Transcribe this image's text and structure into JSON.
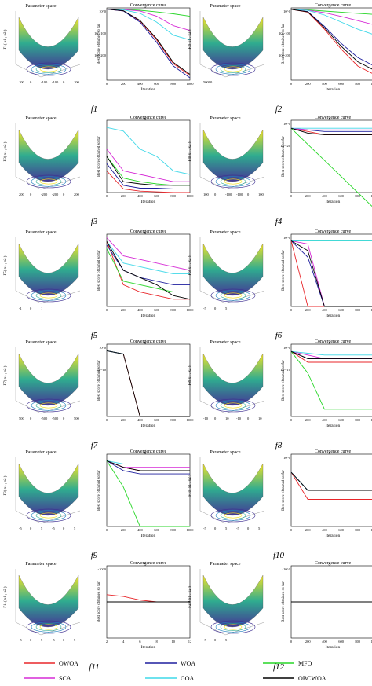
{
  "figure": {
    "functions": [
      "f1",
      "f2",
      "f3",
      "f4",
      "f5",
      "f6",
      "f7",
      "f8",
      "f9",
      "f10",
      "f11",
      "f12"
    ],
    "parameter_space_title": "Parameter space",
    "convergence_title": "Convergence curve",
    "xlabel": "Iteration",
    "ylabel": "Best score obtained so far"
  },
  "legend": [
    {
      "name": "OWOA",
      "color": "#e8262a"
    },
    {
      "name": "WOA",
      "color": "#1f1f9e"
    },
    {
      "name": "MFO",
      "color": "#27d627"
    },
    {
      "name": "SCA",
      "color": "#d62bd6"
    },
    {
      "name": "GOA",
      "color": "#3fd8e8"
    },
    {
      "name": "OBCWOA",
      "color": "#000000"
    }
  ],
  "chart_data": [
    {
      "function": "f1",
      "type": "line",
      "surface_zlabel": "F1( x1 , x2 )",
      "surface_ticks": [
        "100",
        "0",
        "-100",
        "-100",
        "0",
        "100"
      ],
      "x": [
        0,
        200,
        400,
        600,
        800,
        1000
      ],
      "yticks": [
        "10^0",
        "10^-100",
        "10^-200"
      ],
      "ylim": [
        -300,
        5
      ],
      "log_scale": true,
      "series": [
        {
          "name": "OWOA",
          "values": [
            0,
            -8,
            -50,
            -130,
            -230,
            -280
          ]
        },
        {
          "name": "WOA",
          "values": [
            0,
            -8,
            -55,
            -140,
            -240,
            -290
          ]
        },
        {
          "name": "MFO",
          "values": [
            0,
            -1,
            -5,
            -12,
            -20,
            -30
          ]
        },
        {
          "name": "SCA",
          "values": [
            0,
            -2,
            -8,
            -30,
            -70,
            -90
          ]
        },
        {
          "name": "GOA",
          "values": [
            0,
            -3,
            -18,
            -55,
            -110,
            -130
          ]
        },
        {
          "name": "OBCWOA",
          "values": [
            0,
            -7,
            -48,
            -125,
            -225,
            -275
          ]
        }
      ]
    },
    {
      "function": "f2",
      "type": "line",
      "surface_zlabel": "F2( x1 , x2 )",
      "surface_ticks": [
        "50000"
      ],
      "x": [
        0,
        200,
        400,
        600,
        800,
        1000
      ],
      "yticks": [
        "10^0",
        "10^-100",
        "10^-200"
      ],
      "ylim": [
        -250,
        5
      ],
      "log_scale": true,
      "series": [
        {
          "name": "OWOA",
          "values": [
            0,
            -10,
            -70,
            -140,
            -200,
            -230
          ]
        },
        {
          "name": "WOA",
          "values": [
            0,
            -8,
            -60,
            -120,
            -170,
            -200
          ]
        },
        {
          "name": "MFO",
          "values": [
            0,
            -2,
            -6,
            -10,
            -14,
            -18
          ]
        },
        {
          "name": "SCA",
          "values": [
            0,
            -3,
            -12,
            -25,
            -40,
            -55
          ]
        },
        {
          "name": "GOA",
          "values": [
            0,
            -4,
            -20,
            -45,
            -70,
            -90
          ]
        },
        {
          "name": "OBCWOA",
          "values": [
            0,
            -9,
            -65,
            -130,
            -185,
            -215
          ]
        }
      ]
    },
    {
      "function": "f3",
      "type": "line",
      "surface_zlabel": "F3( x1 , x2 )",
      "surface_ticks": [
        "200",
        "0",
        "-200",
        "-200",
        "0",
        "200"
      ],
      "x": [
        0,
        200,
        400,
        600,
        800,
        1000
      ],
      "yticks": [],
      "ylim": [
        0,
        1
      ],
      "log_scale": false,
      "series": [
        {
          "name": "OWOA",
          "values": [
            0.3,
            0.05,
            0.02,
            0.01,
            0.0,
            0.0
          ]
        },
        {
          "name": "WOA",
          "values": [
            0.4,
            0.1,
            0.06,
            0.06,
            0.05,
            0.05
          ]
        },
        {
          "name": "MFO",
          "values": [
            0.5,
            0.2,
            0.15,
            0.12,
            0.1,
            0.1
          ]
        },
        {
          "name": "SCA",
          "values": [
            0.6,
            0.3,
            0.25,
            0.2,
            0.15,
            0.15
          ]
        },
        {
          "name": "GOA",
          "values": [
            0.9,
            0.85,
            0.6,
            0.5,
            0.3,
            0.25
          ]
        },
        {
          "name": "OBCWOA",
          "values": [
            0.5,
            0.15,
            0.12,
            0.1,
            0.1,
            0.1
          ]
        }
      ]
    },
    {
      "function": "f4",
      "type": "line",
      "surface_zlabel": "F4( x1 , x2 )",
      "surface_ticks": [
        "100",
        "0",
        "-100",
        "-100",
        "0",
        "100"
      ],
      "x": [
        0,
        200,
        400,
        600,
        800,
        1000
      ],
      "yticks": [
        "10^0",
        "10^-20"
      ],
      "ylim": [
        -40,
        5
      ],
      "log_scale": true,
      "series": [
        {
          "name": "OWOA",
          "values": [
            0,
            -2,
            -4,
            -4,
            -4,
            -4
          ]
        },
        {
          "name": "WOA",
          "values": [
            0,
            -1,
            -2,
            -2,
            -2,
            -2
          ]
        },
        {
          "name": "MFO",
          "values": [
            0,
            -10,
            -20,
            -30,
            -40,
            -50
          ]
        },
        {
          "name": "SCA",
          "values": [
            0,
            -1,
            -1,
            -1,
            -1,
            -1
          ]
        },
        {
          "name": "GOA",
          "values": [
            0,
            0,
            0,
            0,
            0,
            0
          ]
        },
        {
          "name": "OBCWOA",
          "values": [
            0,
            -3,
            -4,
            -4,
            -4,
            -4
          ]
        }
      ]
    },
    {
      "function": "f5",
      "type": "line",
      "surface_zlabel": "F5( x1 , x2 )",
      "surface_ticks": [
        "-1",
        "0",
        "1"
      ],
      "x": [
        0,
        200,
        400,
        600,
        800,
        1000
      ],
      "yticks": [],
      "ylim": [
        0,
        1
      ],
      "log_scale": false,
      "series": [
        {
          "name": "OWOA",
          "values": [
            0.9,
            0.3,
            0.2,
            0.15,
            0.1,
            0.1
          ]
        },
        {
          "name": "WOA",
          "values": [
            0.85,
            0.5,
            0.4,
            0.35,
            0.3,
            0.3
          ]
        },
        {
          "name": "MFO",
          "values": [
            0.8,
            0.35,
            0.3,
            0.25,
            0.2,
            0.2
          ]
        },
        {
          "name": "SCA",
          "values": [
            0.95,
            0.7,
            0.65,
            0.6,
            0.55,
            0.5
          ]
        },
        {
          "name": "GOA",
          "values": [
            0.9,
            0.6,
            0.55,
            0.5,
            0.45,
            0.45
          ]
        },
        {
          "name": "OBCWOA",
          "values": [
            0.9,
            0.5,
            0.4,
            0.3,
            0.15,
            0.1
          ]
        }
      ]
    },
    {
      "function": "f6",
      "type": "line",
      "surface_zlabel": "F6( x1 , x2 )",
      "surface_ticks": [
        "-5",
        "0",
        "5"
      ],
      "x": [
        0,
        200,
        400,
        600,
        800,
        1000
      ],
      "yticks": [
        "10^0"
      ],
      "ylim": [
        -20,
        2
      ],
      "log_scale": true,
      "series": [
        {
          "name": "OWOA",
          "values": [
            0,
            -20,
            -20,
            -20,
            -20,
            -20
          ]
        },
        {
          "name": "WOA",
          "values": [
            0,
            -5,
            -20,
            -20,
            -20,
            -20
          ]
        },
        {
          "name": "MFO",
          "values": [
            0,
            0,
            0,
            0,
            0,
            0
          ]
        },
        {
          "name": "SCA",
          "values": [
            0,
            -1,
            -20,
            -20,
            -20,
            -20
          ]
        },
        {
          "name": "GOA",
          "values": [
            0,
            0,
            0,
            0,
            0,
            0
          ]
        },
        {
          "name": "OBCWOA",
          "values": [
            0,
            -3,
            -20,
            -20,
            -20,
            -20
          ]
        }
      ]
    },
    {
      "function": "f7",
      "type": "line",
      "surface_zlabel": "F7( x1 , x2 )",
      "surface_ticks": [
        "500",
        "0",
        "-500",
        "-500",
        "0",
        "500"
      ],
      "x": [
        0,
        200,
        400,
        600,
        800,
        1000
      ],
      "yticks": [
        "10^0",
        "10^-10"
      ],
      "ylim": [
        -20,
        2
      ],
      "log_scale": true,
      "series": [
        {
          "name": "OWOA",
          "values": [
            0,
            -1,
            -20,
            -20,
            -20,
            -20
          ]
        },
        {
          "name": "WOA",
          "values": [
            0,
            -1,
            -1,
            -1,
            -1,
            -1
          ]
        },
        {
          "name": "MFO",
          "values": [
            0,
            -1,
            -1,
            -1,
            -1,
            -1
          ]
        },
        {
          "name": "SCA",
          "values": [
            0,
            -1,
            -1,
            -1,
            -1,
            -1
          ]
        },
        {
          "name": "GOA",
          "values": [
            0,
            -1,
            -1,
            -1,
            -1,
            -1
          ]
        },
        {
          "name": "OBCWOA",
          "values": [
            0,
            -1,
            -20,
            -20,
            -20,
            -20
          ]
        }
      ]
    },
    {
      "function": "f8",
      "type": "line",
      "surface_zlabel": "F8( x1 , x2 )",
      "surface_ticks": [
        "-10",
        "0",
        "10",
        "-10",
        "0",
        "10"
      ],
      "x": [
        0,
        200,
        400,
        600,
        800,
        1000
      ],
      "yticks": [
        "10^0",
        "10^-10"
      ],
      "ylim": [
        -18,
        2
      ],
      "log_scale": true,
      "series": [
        {
          "name": "OWOA",
          "values": [
            0,
            -3,
            -3,
            -3,
            -3,
            -3
          ]
        },
        {
          "name": "WOA",
          "values": [
            0,
            -2,
            -2,
            -2,
            -2,
            -2
          ]
        },
        {
          "name": "MFO",
          "values": [
            0,
            -6,
            -16,
            -16,
            -16,
            -16
          ]
        },
        {
          "name": "SCA",
          "values": [
            0,
            -1,
            -2,
            -2,
            -2,
            -2
          ]
        },
        {
          "name": "GOA",
          "values": [
            0,
            -0.5,
            -1,
            -1,
            -1,
            -1
          ]
        },
        {
          "name": "OBCWOA",
          "values": [
            0,
            -2,
            -2,
            -2,
            -2,
            -2
          ]
        }
      ]
    },
    {
      "function": "f9",
      "type": "line",
      "surface_zlabel": "F9( x1 , x2 )",
      "surface_ticks": [
        "-5",
        "0",
        "5",
        "-5",
        "0",
        "5"
      ],
      "x": [
        0,
        200,
        400,
        600,
        800,
        1000
      ],
      "yticks": [],
      "ylim": [
        -20,
        2
      ],
      "log_scale": true,
      "series": [
        {
          "name": "OWOA",
          "values": [
            0,
            -2,
            -3,
            -3,
            -3,
            -3
          ]
        },
        {
          "name": "WOA",
          "values": [
            0,
            -3,
            -4,
            -4,
            -4,
            -4
          ]
        },
        {
          "name": "MFO",
          "values": [
            0,
            -8,
            -20,
            -20,
            -20,
            -20
          ]
        },
        {
          "name": "SCA",
          "values": [
            0,
            -2,
            -2,
            -2,
            -2,
            -2
          ]
        },
        {
          "name": "GOA",
          "values": [
            0,
            -1,
            -1,
            -1,
            -1,
            -1
          ]
        },
        {
          "name": "OBCWOA",
          "values": [
            0,
            -2,
            -3,
            -3,
            -3,
            -3
          ]
        }
      ]
    },
    {
      "function": "f10",
      "type": "line",
      "surface_zlabel": "F10( x1 , x2 )",
      "surface_ticks": [
        "-5",
        "0",
        "5",
        "-5",
        "0",
        "5"
      ],
      "x": [
        0,
        200,
        400,
        600,
        800,
        1000
      ],
      "yticks": [
        "10^0"
      ],
      "ylim": [
        -6,
        2
      ],
      "log_scale": true,
      "series": [
        {
          "name": "OWOA",
          "values": [
            0,
            -3,
            -3,
            -3,
            -3,
            -3
          ]
        },
        {
          "name": "WOA",
          "values": [
            0,
            -2,
            -2,
            -2,
            -2,
            -2
          ]
        },
        {
          "name": "MFO",
          "values": [
            0,
            -2,
            -2,
            -2,
            -2,
            -2
          ]
        },
        {
          "name": "SCA",
          "values": [
            0,
            -2,
            -2,
            -2,
            -2,
            -2
          ]
        },
        {
          "name": "GOA",
          "values": [
            0,
            -2,
            -2,
            -2,
            -2,
            -2
          ]
        },
        {
          "name": "OBCWOA",
          "values": [
            0,
            -2,
            -2,
            -2,
            -2,
            -2
          ]
        }
      ]
    },
    {
      "function": "f11",
      "type": "line",
      "surface_zlabel": "F11( x1 , x2 )",
      "surface_ticks": [
        "-5",
        "0",
        "5",
        "-5",
        "0",
        "5"
      ],
      "x": [
        2,
        4,
        6,
        8,
        10,
        12
      ],
      "yticks": [
        "-10^0"
      ],
      "ylim": [
        -1,
        1
      ],
      "log_scale": false,
      "series": [
        {
          "name": "OWOA",
          "values": [
            0.2,
            0.15,
            0.05,
            0.0,
            0.0,
            0.0
          ]
        },
        {
          "name": "WOA",
          "values": [
            0.0,
            0.0,
            0.0,
            0.0,
            0.0,
            0.0
          ]
        },
        {
          "name": "MFO",
          "values": [
            0.0,
            0.0,
            0.0,
            0.0,
            0.0,
            0.0
          ]
        },
        {
          "name": "SCA",
          "values": [
            0.0,
            0.0,
            0.0,
            0.0,
            0.0,
            0.0
          ]
        },
        {
          "name": "GOA",
          "values": [
            0.0,
            0.0,
            0.0,
            0.0,
            0.0,
            0.0
          ]
        },
        {
          "name": "OBCWOA",
          "values": [
            0.0,
            0.0,
            0.0,
            0.0,
            0.0,
            0.0
          ]
        }
      ]
    },
    {
      "function": "f12",
      "type": "line",
      "surface_zlabel": "F21( x1 , x2 )",
      "surface_ticks": [
        "-5",
        "0",
        "5"
      ],
      "x": [
        0,
        200,
        400,
        600,
        800,
        1000
      ],
      "yticks": [
        "-10^1"
      ],
      "ylim": [
        -1,
        1
      ],
      "log_scale": false,
      "series": [
        {
          "name": "OWOA",
          "values": [
            0,
            0,
            0,
            0,
            0,
            0
          ]
        },
        {
          "name": "WOA",
          "values": [
            0,
            0,
            0,
            0,
            0,
            0
          ]
        },
        {
          "name": "MFO",
          "values": [
            0,
            0,
            0,
            0,
            0,
            0
          ]
        },
        {
          "name": "SCA",
          "values": [
            0,
            0,
            0,
            0,
            0,
            0
          ]
        },
        {
          "name": "GOA",
          "values": [
            0,
            0,
            0,
            0,
            0,
            0
          ]
        },
        {
          "name": "OBCWOA",
          "values": [
            0,
            0,
            0,
            0,
            0,
            0
          ]
        }
      ]
    }
  ]
}
